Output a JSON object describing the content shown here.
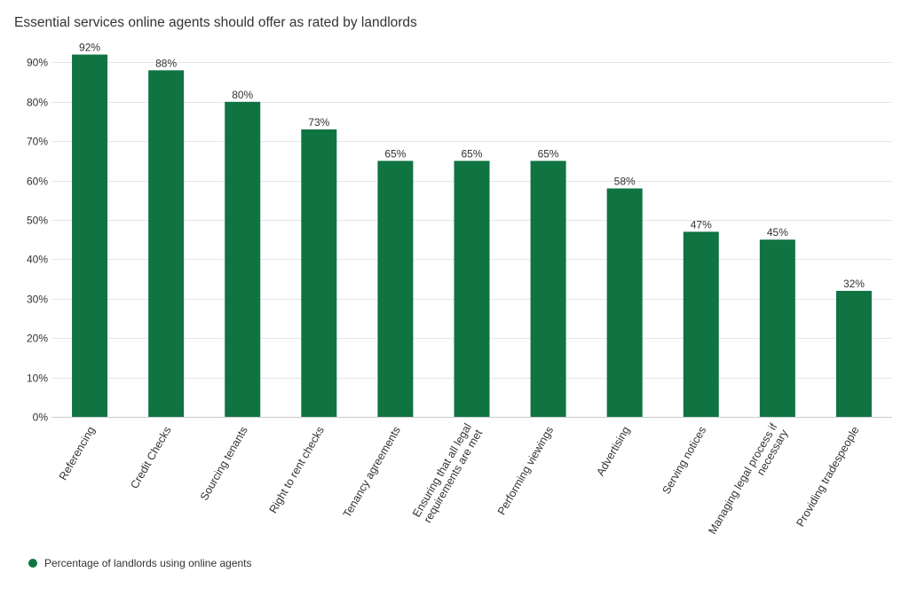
{
  "chart_data": {
    "type": "bar",
    "title": "Essential services online agents should offer as rated by landlords",
    "categories": [
      "Referencing",
      "Credit Checks",
      "Sourcing tenants",
      "Right to rent checks",
      "Tenancy agreements",
      "Ensuring that all legal requirements are met",
      "Performing viewings",
      "Advertising",
      "Serving notices",
      "Managing legal process if necessary",
      "Providing tradespeople"
    ],
    "category_lines": [
      [
        "Referencing"
      ],
      [
        "Credit Checks"
      ],
      [
        "Sourcing tenants"
      ],
      [
        "Right to rent checks"
      ],
      [
        "Tenancy agreements"
      ],
      [
        "Ensuring that all legal",
        "requirements are met"
      ],
      [
        "Performing viewings"
      ],
      [
        "Advertising"
      ],
      [
        "Serving notices"
      ],
      [
        "Managing legal process if",
        "necessary"
      ],
      [
        "Providing tradespeople"
      ]
    ],
    "series": [
      {
        "name": "Percentage of landlords using online agents",
        "values": [
          92,
          88,
          80,
          73,
          65,
          65,
          65,
          58,
          47,
          45,
          32
        ],
        "labels": [
          "92%",
          "88%",
          "80%",
          "73%",
          "65%",
          "65%",
          "65%",
          "58%",
          "47%",
          "45%",
          "32%"
        ]
      }
    ],
    "y_ticks": [
      "0%",
      "10%",
      "20%",
      "30%",
      "40%",
      "50%",
      "60%",
      "70%",
      "80%",
      "90%"
    ],
    "ylim": [
      0,
      100
    ],
    "xlabel": "",
    "ylabel": "",
    "grid": true,
    "legend_position": "bottom-left",
    "bar_color": "#0f7442",
    "grid_color": "#e6e6e6",
    "text_color": "#333333"
  }
}
